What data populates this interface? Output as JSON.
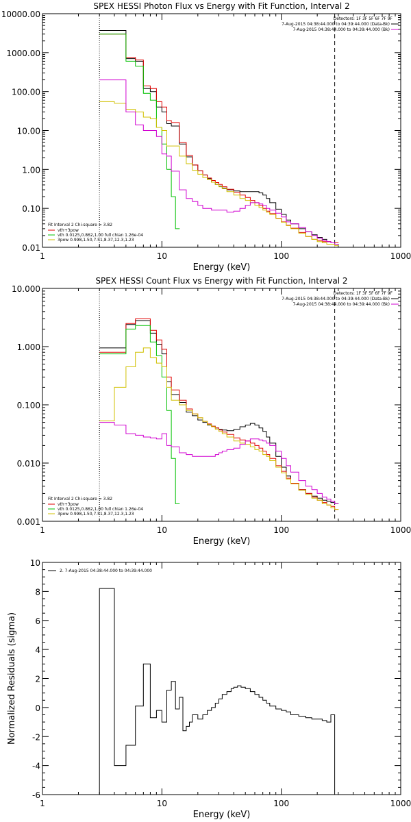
{
  "chart_data": [
    {
      "type": "line",
      "title": "SPEX HESSI Photon Flux vs Energy with Fit Function, Interval 2",
      "xlabel": "Energy (keV)",
      "ylabel": "",
      "xscale": "log",
      "yscale": "log",
      "xlim": [
        1,
        1000
      ],
      "ylim": [
        0.01,
        10000
      ],
      "xticks": [
        "1",
        "10",
        "100",
        "1000"
      ],
      "yticks": [
        "0.01",
        "0.10",
        "1.00",
        "10.00",
        "100.00",
        "1000.00",
        "10000.00"
      ],
      "detectors_text": "Detectors: 1F 3F 5F 6F 7F 9F",
      "legend_right": [
        {
          "text": "7-Aug-2015 04:38:44.000 to 04:39:44.000 (Data-Bk)",
          "color": "#000000"
        },
        {
          "text": "7-Aug-2015 04:38:44.000 to 04:39:44.000 (Bk)",
          "color": "#d000d0"
        }
      ],
      "legend_left_title": "Fit Interval 2   Chi-square = 3.82",
      "legend_left": [
        {
          "text": "vth+3pow",
          "color": "#e00000"
        },
        {
          "text": "vth 0.0125,0.862,1.00  full chian 1.26e-04",
          "color": "#00c000"
        },
        {
          "text": "3pow 0.998,1.50,7.51,8.37,12.3,1.23",
          "color": "#d0c000"
        }
      ],
      "vlines": [
        {
          "x": 3,
          "style": "dotted"
        },
        {
          "x": 280,
          "style": "dashed"
        }
      ],
      "series": [
        {
          "name": "Data-Bk",
          "color": "#000000",
          "x": [
            3,
            4,
            5,
            6,
            7,
            8,
            9,
            10,
            11,
            12,
            14,
            16,
            18,
            20,
            22,
            24,
            26,
            28,
            30,
            32,
            35,
            40,
            45,
            50,
            55,
            60,
            65,
            70,
            75,
            80,
            90,
            100,
            110,
            120,
            140,
            160,
            180,
            200,
            220,
            240,
            260,
            280
          ],
          "y": [
            3700,
            3700,
            700,
            600,
            120,
            100,
            40,
            30,
            15,
            13,
            4.5,
            2.1,
            1.3,
            0.92,
            0.72,
            0.58,
            0.47,
            0.41,
            0.37,
            0.33,
            0.3,
            0.28,
            0.27,
            0.27,
            0.27,
            0.27,
            0.25,
            0.22,
            0.18,
            0.14,
            0.095,
            0.07,
            0.05,
            0.04,
            0.03,
            0.025,
            0.021,
            0.018,
            0.016,
            0.014,
            0.013,
            0.012
          ]
        },
        {
          "name": "vth+3pow",
          "color": "#e00000",
          "x": [
            3,
            4,
            5,
            6,
            7,
            8,
            9,
            10,
            11,
            12,
            14,
            16,
            18,
            20,
            22,
            24,
            26,
            28,
            30,
            32,
            35,
            40,
            45,
            50,
            55,
            60,
            65,
            70,
            75,
            80,
            90,
            100,
            110,
            120,
            140,
            160,
            180,
            200,
            220,
            240,
            260,
            280
          ],
          "y": [
            3000,
            3000,
            750,
            650,
            140,
            120,
            55,
            40,
            18,
            16,
            4.9,
            2.3,
            1.3,
            0.92,
            0.72,
            0.6,
            0.52,
            0.46,
            0.41,
            0.36,
            0.31,
            0.26,
            0.22,
            0.19,
            0.16,
            0.14,
            0.12,
            0.1,
            0.085,
            0.073,
            0.056,
            0.045,
            0.037,
            0.031,
            0.024,
            0.019,
            0.016,
            0.015,
            0.014,
            0.014,
            0.013,
            0.013
          ]
        },
        {
          "name": "vth",
          "color": "#00c000",
          "x": [
            3,
            4,
            5,
            6,
            7,
            8,
            9,
            10,
            11,
            12,
            13
          ],
          "y": [
            3000,
            3000,
            600,
            450,
            90,
            60,
            12,
            4.5,
            1.0,
            0.2,
            0.03
          ]
        },
        {
          "name": "3pow",
          "color": "#d0c000",
          "x": [
            3,
            4,
            5,
            6,
            7,
            8,
            9,
            10,
            11,
            12,
            14,
            16,
            18,
            20,
            22,
            24,
            26,
            28,
            30,
            32,
            35,
            40,
            45,
            50,
            55,
            60,
            65,
            70,
            75,
            80,
            90,
            100,
            110,
            120,
            140,
            160,
            180,
            200,
            220,
            240,
            260,
            280
          ],
          "y": [
            55,
            50,
            35,
            30,
            22,
            20,
            12,
            10,
            4,
            4,
            2.2,
            1.4,
            0.95,
            0.75,
            0.62,
            0.54,
            0.47,
            0.41,
            0.36,
            0.32,
            0.27,
            0.22,
            0.18,
            0.16,
            0.14,
            0.12,
            0.105,
            0.09,
            0.08,
            0.07,
            0.055,
            0.044,
            0.036,
            0.03,
            0.023,
            0.019,
            0.016,
            0.014,
            0.013,
            0.012,
            0.012,
            0.011
          ]
        },
        {
          "name": "Bk",
          "color": "#d000d0",
          "x": [
            3,
            4,
            5,
            6,
            7,
            8,
            9,
            10,
            11,
            12,
            14,
            16,
            18,
            20,
            22,
            24,
            26,
            28,
            30,
            32,
            35,
            40,
            45,
            50,
            55,
            60,
            65,
            70,
            75,
            80,
            90,
            100,
            110,
            120,
            140,
            160,
            180,
            200,
            220,
            240,
            260,
            280
          ],
          "y": [
            200,
            200,
            30,
            14,
            10,
            10,
            7,
            2.5,
            2.2,
            0.9,
            0.3,
            0.18,
            0.15,
            0.12,
            0.1,
            0.1,
            0.09,
            0.09,
            0.09,
            0.09,
            0.08,
            0.085,
            0.1,
            0.12,
            0.14,
            0.14,
            0.13,
            0.12,
            0.1,
            0.09,
            0.075,
            0.06,
            0.045,
            0.04,
            0.032,
            0.025,
            0.02,
            0.017,
            0.015,
            0.014,
            0.013,
            0.012
          ]
        }
      ]
    },
    {
      "type": "line",
      "title": "SPEX HESSI Count Flux vs Energy with Fit Function, Interval 2",
      "xlabel": "Energy (keV)",
      "ylabel": "",
      "xscale": "log",
      "yscale": "log",
      "xlim": [
        1,
        1000
      ],
      "ylim": [
        0.001,
        10
      ],
      "xticks": [
        "1",
        "10",
        "100",
        "1000"
      ],
      "yticks": [
        "0.001",
        "0.010",
        "0.100",
        "1.000",
        "10.000"
      ],
      "detectors_text": "Detectors: 1F 3F 5F 6F 7F 9F",
      "legend_right": [
        {
          "text": "7-Aug-2015 04:38:44.000 to 04:39:44.000 (Data-Bk)",
          "color": "#000000"
        },
        {
          "text": "7-Aug-2015 04:38:44.000 to 04:39:44.000 (Bk)",
          "color": "#d000d0"
        }
      ],
      "legend_left_title": "Fit Interval 2   Chi-square = 3.82",
      "legend_left": [
        {
          "text": "vth+3pow",
          "color": "#e00000"
        },
        {
          "text": "vth 0.0125,0.862,1.00  full chian 1.26e-04",
          "color": "#00c000"
        },
        {
          "text": "3pow 0.998,1.50,7.51,8.37,12.3,1.23",
          "color": "#d0c000"
        }
      ],
      "vlines": [
        {
          "x": 3,
          "style": "dotted"
        },
        {
          "x": 280,
          "style": "dashed"
        }
      ],
      "series": [
        {
          "name": "Data-Bk",
          "color": "#000000",
          "x": [
            3,
            4,
            5,
            6,
            7,
            8,
            9,
            10,
            11,
            12,
            14,
            16,
            18,
            20,
            22,
            24,
            26,
            28,
            30,
            32,
            35,
            40,
            45,
            50,
            55,
            60,
            65,
            70,
            75,
            80,
            90,
            100,
            110,
            120,
            140,
            160,
            180,
            200,
            220,
            240,
            260,
            280
          ],
          "y": [
            0.95,
            0.95,
            2.4,
            2.8,
            2.8,
            1.7,
            1.1,
            0.75,
            0.25,
            0.15,
            0.11,
            0.075,
            0.065,
            0.055,
            0.05,
            0.045,
            0.043,
            0.04,
            0.038,
            0.037,
            0.036,
            0.038,
            0.042,
            0.045,
            0.048,
            0.045,
            0.04,
            0.035,
            0.028,
            0.022,
            0.013,
            0.0085,
            0.006,
            0.0045,
            0.0035,
            0.003,
            0.0027,
            0.0025,
            0.0023,
            0.0022,
            0.0021,
            0.002
          ]
        },
        {
          "name": "vth+3pow",
          "color": "#e00000",
          "x": [
            3,
            4,
            5,
            6,
            7,
            8,
            9,
            10,
            11,
            12,
            14,
            16,
            18,
            20,
            22,
            24,
            26,
            28,
            30,
            32,
            35,
            40,
            45,
            50,
            55,
            60,
            65,
            70,
            75,
            80,
            90,
            100,
            110,
            120,
            140,
            160,
            180,
            200,
            220,
            240,
            260,
            280
          ],
          "y": [
            0.8,
            0.8,
            2.5,
            3.0,
            3.0,
            1.9,
            1.3,
            0.9,
            0.3,
            0.18,
            0.12,
            0.085,
            0.07,
            0.06,
            0.052,
            0.047,
            0.043,
            0.04,
            0.037,
            0.034,
            0.031,
            0.027,
            0.025,
            0.024,
            0.022,
            0.02,
            0.018,
            0.016,
            0.014,
            0.012,
            0.009,
            0.0072,
            0.0055,
            0.0045,
            0.0035,
            0.003,
            0.0026,
            0.0023,
            0.0021,
            0.0019,
            0.0018,
            0.0016
          ]
        },
        {
          "name": "vth",
          "color": "#00c000",
          "x": [
            3,
            4,
            5,
            6,
            7,
            8,
            9,
            10,
            11,
            12,
            13
          ],
          "y": [
            0.75,
            0.75,
            2.0,
            2.3,
            2.3,
            1.2,
            0.7,
            0.3,
            0.08,
            0.012,
            0.002
          ]
        },
        {
          "name": "3pow",
          "color": "#d0c000",
          "x": [
            3,
            4,
            5,
            6,
            7,
            8,
            9,
            10,
            11,
            12,
            14,
            16,
            18,
            20,
            22,
            24,
            26,
            28,
            30,
            32,
            35,
            40,
            45,
            50,
            55,
            60,
            65,
            70,
            75,
            80,
            90,
            100,
            110,
            120,
            140,
            160,
            180,
            200,
            220,
            240,
            260,
            280
          ],
          "y": [
            0.053,
            0.2,
            0.45,
            0.8,
            0.95,
            0.65,
            0.52,
            0.45,
            0.2,
            0.12,
            0.1,
            0.08,
            0.07,
            0.06,
            0.052,
            0.046,
            0.042,
            0.038,
            0.035,
            0.032,
            0.028,
            0.024,
            0.022,
            0.021,
            0.019,
            0.017,
            0.016,
            0.014,
            0.013,
            0.011,
            0.0085,
            0.0068,
            0.0053,
            0.0044,
            0.0034,
            0.0029,
            0.0025,
            0.0023,
            0.002,
            0.0019,
            0.0017,
            0.0016
          ]
        },
        {
          "name": "Bk",
          "color": "#d000d0",
          "x": [
            3,
            4,
            5,
            6,
            7,
            8,
            9,
            10,
            11,
            12,
            14,
            16,
            18,
            20,
            22,
            24,
            26,
            28,
            30,
            32,
            35,
            40,
            45,
            50,
            55,
            60,
            65,
            70,
            75,
            80,
            90,
            100,
            110,
            120,
            140,
            160,
            180,
            200,
            220,
            240,
            260,
            280
          ],
          "y": [
            0.05,
            0.045,
            0.032,
            0.03,
            0.028,
            0.027,
            0.026,
            0.032,
            0.02,
            0.019,
            0.015,
            0.014,
            0.013,
            0.013,
            0.013,
            0.013,
            0.013,
            0.014,
            0.015,
            0.016,
            0.017,
            0.018,
            0.021,
            0.024,
            0.026,
            0.026,
            0.025,
            0.024,
            0.022,
            0.02,
            0.016,
            0.012,
            0.009,
            0.007,
            0.005,
            0.004,
            0.0035,
            0.003,
            0.0026,
            0.0024,
            0.0022,
            0.002
          ]
        }
      ]
    },
    {
      "type": "line",
      "title": "",
      "xlabel": "Energy (keV)",
      "ylabel": "Normalized Residuals (sigma)",
      "xscale": "log",
      "yscale": "linear",
      "xlim": [
        1,
        1000
      ],
      "ylim": [
        -6,
        10
      ],
      "xticks": [
        "1",
        "10",
        "100",
        "1000"
      ],
      "yticks": [
        "-6",
        "-4",
        "-2",
        "0",
        "2",
        "4",
        "6",
        "8",
        "10"
      ],
      "legend": [
        {
          "text": "2. 7-Aug-2015 04:38:44.000 to 04:39:44.000",
          "color": "#000000"
        }
      ],
      "series": [
        {
          "name": "2. 7-Aug-2015 04:38:44.000 to 04:39:44.000",
          "color": "#000000",
          "step": true,
          "edges": [
            3,
            4,
            5,
            6,
            7,
            8,
            9,
            10,
            11,
            12,
            13,
            14,
            15,
            16,
            17,
            18,
            20,
            22,
            24,
            26,
            28,
            30,
            32,
            35,
            38,
            40,
            43,
            46,
            50,
            55,
            60,
            65,
            70,
            75,
            80,
            90,
            100,
            110,
            120,
            140,
            160,
            180,
            200,
            220,
            240,
            260,
            280
          ],
          "values": [
            8.2,
            -4,
            -2.6,
            0.1,
            3.0,
            -0.7,
            -0.2,
            -1.0,
            1.2,
            1.8,
            -0.1,
            0.7,
            -1.6,
            -1.3,
            -1.0,
            -0.5,
            -0.8,
            -0.5,
            -0.2,
            0,
            0.3,
            0.6,
            0.9,
            1.1,
            1.3,
            1.4,
            1.5,
            1.4,
            1.3,
            1.1,
            0.9,
            0.7,
            0.5,
            0.3,
            0.1,
            -0.1,
            -0.2,
            -0.3,
            -0.5,
            -0.6,
            -0.7,
            -0.8,
            -0.8,
            -0.9,
            -1.0,
            -0.5
          ]
        }
      ]
    }
  ]
}
